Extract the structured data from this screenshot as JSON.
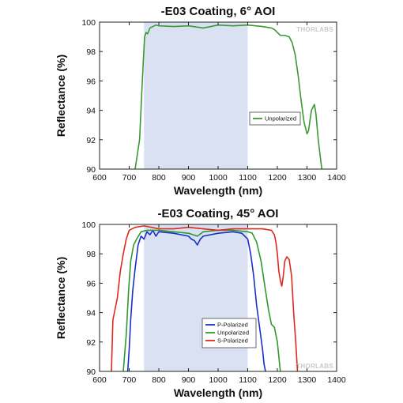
{
  "chart_data": [
    {
      "type": "line",
      "title": "-E03 Coating, 6° AOI",
      "xlabel": "Wavelength (nm)",
      "ylabel": "Reflectance (%)",
      "xlim": [
        600,
        1400
      ],
      "ylim": [
        90,
        100
      ],
      "xticks": [
        600,
        700,
        800,
        900,
        1000,
        1100,
        1200,
        1300,
        1400
      ],
      "yticks": [
        90,
        92,
        94,
        96,
        98,
        100
      ],
      "shaded_band": [
        750,
        1100
      ],
      "shade_color": "#d9e1f3",
      "brand": "THORLABS",
      "legend_position": "center-right",
      "series": [
        {
          "name": "Unpolarized",
          "color": "#3a9a32",
          "x": [
            720,
            735,
            742,
            748,
            752,
            757,
            762,
            770,
            780,
            790,
            800,
            850,
            900,
            950,
            1000,
            1050,
            1100,
            1150,
            1180,
            1190,
            1200,
            1210,
            1225,
            1240,
            1250,
            1260,
            1270,
            1280,
            1290,
            1300,
            1305,
            1315,
            1325,
            1330,
            1338,
            1345,
            1350
          ],
          "y": [
            90,
            92,
            95,
            97.5,
            99,
            99.3,
            99.2,
            99.6,
            99.7,
            99.8,
            99.75,
            99.7,
            99.75,
            99.6,
            99.8,
            99.75,
            99.8,
            99.7,
            99.6,
            99.5,
            99.3,
            99.1,
            99.1,
            99.0,
            98.6,
            97.8,
            96.4,
            94.7,
            93.2,
            92.4,
            92.6,
            94.0,
            94.4,
            93.8,
            92.0,
            90.8,
            90
          ]
        }
      ]
    },
    {
      "type": "line",
      "title": "-E03 Coating, 45° AOI",
      "xlabel": "Wavelength (nm)",
      "ylabel": "Reflectance (%)",
      "xlim": [
        600,
        1400
      ],
      "ylim": [
        90,
        100
      ],
      "xticks": [
        600,
        700,
        800,
        900,
        1000,
        1100,
        1200,
        1300,
        1400
      ],
      "yticks": [
        90,
        92,
        94,
        96,
        98,
        100
      ],
      "shaded_band": [
        750,
        1100
      ],
      "shade_color": "#d9e1f3",
      "brand": "THORLABS",
      "legend_position": "bottom-right",
      "series": [
        {
          "name": "P-Polarized",
          "color": "#1830c8",
          "x": [
            695,
            700,
            705,
            712,
            720,
            730,
            740,
            750,
            760,
            770,
            780,
            790,
            800,
            850,
            900,
            910,
            920,
            930,
            940,
            950,
            1000,
            1050,
            1080,
            1100,
            1110,
            1120,
            1130,
            1140,
            1150,
            1155,
            1160
          ],
          "y": [
            90,
            91.5,
            93.5,
            95.5,
            97.0,
            98.6,
            99.2,
            99.0,
            99.5,
            99.3,
            99.6,
            99.2,
            99.5,
            99.4,
            99.2,
            99.0,
            98.9,
            98.6,
            99.0,
            99.2,
            99.4,
            99.5,
            99.4,
            99.0,
            98.0,
            96.5,
            94.5,
            93.0,
            91.5,
            90.5,
            90
          ]
        },
        {
          "name": "Unpolarized",
          "color": "#2e9a2e",
          "x": [
            680,
            690,
            698,
            705,
            715,
            725,
            740,
            760,
            800,
            850,
            900,
            930,
            950,
            1000,
            1050,
            1100,
            1115,
            1130,
            1145,
            1160,
            1170,
            1180,
            1190,
            1200,
            1205,
            1210
          ],
          "y": [
            90,
            92.5,
            95.5,
            97.5,
            98.6,
            99.0,
            99.5,
            99.6,
            99.6,
            99.5,
            99.4,
            99.2,
            99.5,
            99.6,
            99.6,
            99.5,
            99.4,
            98.8,
            97.5,
            95.5,
            94.2,
            93.2,
            93.0,
            92.0,
            91.0,
            90
          ]
        },
        {
          "name": "S-Polarized",
          "color": "#e0281e",
          "x": [
            640,
            645,
            650,
            660,
            670,
            680,
            690,
            700,
            720,
            750,
            800,
            850,
            900,
            950,
            1000,
            1050,
            1100,
            1150,
            1180,
            1190,
            1195,
            1200,
            1205,
            1210,
            1215,
            1220,
            1225,
            1232,
            1240,
            1248,
            1255,
            1262,
            1268
          ],
          "y": [
            90,
            93.5,
            94.0,
            95.0,
            96.8,
            98.0,
            99.0,
            99.6,
            99.8,
            99.9,
            99.7,
            99.7,
            99.8,
            99.7,
            99.6,
            99.7,
            99.7,
            99.7,
            99.6,
            99.3,
            98.8,
            98.0,
            96.8,
            96.2,
            95.8,
            96.5,
            97.5,
            97.8,
            97.6,
            96.5,
            94.0,
            92.0,
            90
          ]
        }
      ]
    }
  ]
}
